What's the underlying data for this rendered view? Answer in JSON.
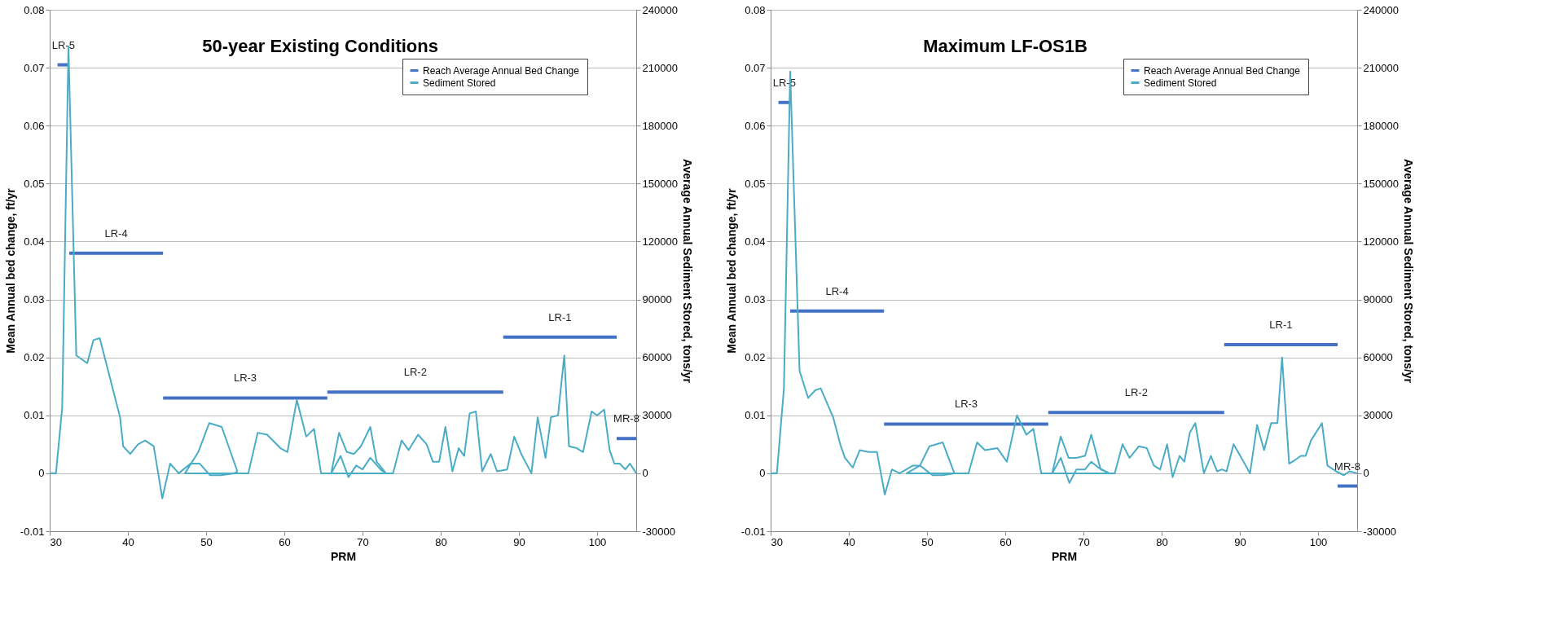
{
  "chart_data": [
    {
      "type": "line",
      "title": "50-year Existing Conditions",
      "xlabel": "PRM",
      "ylabel": "Mean Annual bed change, ft/yr",
      "y2label": "Average Annual Sediment Stored, tons/yr",
      "xlim": [
        30,
        105
      ],
      "xticks": [
        30,
        40,
        50,
        60,
        70,
        80,
        90,
        100
      ],
      "ylim": [
        -0.01,
        0.08
      ],
      "yticks": [
        -0.01,
        0,
        0.01,
        0.02,
        0.03,
        0.04,
        0.05,
        0.06,
        0.07,
        0.08
      ],
      "y2lim": [
        -30000,
        240000
      ],
      "y2ticks": [
        -30000,
        0,
        30000,
        60000,
        90000,
        120000,
        150000,
        180000,
        210000,
        240000
      ],
      "grid": "y",
      "legend": "top right",
      "series": [
        {
          "name": "Reach Average Annual Bed Change",
          "color": "#4472c4",
          "x": [
            31,
            32.5
          ],
          "values": [
            0.0705,
            0.0705
          ]
        },
        {
          "color": "#4472c4",
          "x": [
            32.5,
            44.5
          ],
          "values": [
            0.038,
            0.038
          ]
        },
        {
          "color": "#4472c4",
          "x": [
            44.5,
            65.5
          ],
          "values": [
            0.013,
            0.013
          ]
        },
        {
          "color": "#4472c4",
          "x": [
            65.5,
            88
          ],
          "values": [
            0.014,
            0.014
          ]
        },
        {
          "color": "#4472c4",
          "x": [
            88,
            102.5
          ],
          "values": [
            0.0235,
            0.0235
          ]
        },
        {
          "color": "#4472c4",
          "x": [
            102.5,
            105
          ],
          "values": [
            0.006,
            0.006
          ]
        },
        {
          "name": "Sediment Stored",
          "color": "#4bacc6",
          "axis": "y2",
          "x": [
            30,
            30.8,
            31.6,
            32.4,
            33.4,
            34.8,
            35.6,
            36.4,
            39,
            39.4,
            40.3,
            41.3,
            42.2,
            43.3,
            44.4,
            45.4,
            46.5,
            48,
            49.2,
            50.5,
            51.9,
            53.6,
            54,
            52,
            50.4,
            49,
            47.3,
            55.4,
            56.6,
            57.8,
            59.5,
            60.4,
            61.6,
            62.8,
            63.8,
            64.7,
            66,
            67.2,
            68.2,
            69.2,
            70,
            71,
            72.3,
            73,
            71.8,
            71,
            69.8,
            68.9,
            68,
            67,
            66,
            73.9,
            75,
            75.9,
            77.1,
            78.2,
            79,
            79.8,
            80.6,
            81.5,
            82.3,
            83,
            83.7,
            84.5,
            85.3,
            86.4,
            87.2,
            88.5,
            89.4,
            90.3,
            91.6,
            92.4,
            93.4,
            94.1,
            95,
            95.8,
            96.4,
            97.4,
            98.2,
            99.3,
            100,
            100.9,
            101.6,
            102.2,
            102.9,
            103.6,
            104.2,
            105
          ],
          "values": [
            0,
            0,
            34000,
            221000,
            61000,
            57000,
            69000,
            70000,
            29000,
            14000,
            10000,
            15000,
            17000,
            14000,
            -13000,
            5000,
            0,
            5000,
            5000,
            -1000,
            -1000,
            0,
            1000,
            24000,
            26000,
            11000,
            0,
            0,
            21000,
            20000,
            13000,
            11000,
            38000,
            19000,
            23000,
            0,
            0,
            9000,
            -2000,
            4000,
            2000,
            8000,
            2000,
            0,
            6000,
            24000,
            14000,
            10000,
            11000,
            21000,
            0,
            0,
            17000,
            12000,
            20000,
            15000,
            6000,
            6000,
            24000,
            1000,
            13000,
            9000,
            31000,
            32000,
            1000,
            10000,
            1000,
            2000,
            19000,
            10000,
            0,
            29000,
            8000,
            29000,
            30000,
            61000,
            14000,
            13000,
            11000,
            32000,
            30000,
            33000,
            12000,
            5000,
            5000,
            2000,
            5000,
            0
          ]
        }
      ],
      "annotations": [
        {
          "text": "LR-5",
          "x": 31.75,
          "y": 0.0705
        },
        {
          "text": "LR-4",
          "x": 38.5,
          "y": 0.038
        },
        {
          "text": "LR-3",
          "x": 55,
          "y": 0.013
        },
        {
          "text": "LR-2",
          "x": 76.75,
          "y": 0.014
        },
        {
          "text": "LR-1",
          "x": 95.25,
          "y": 0.0235
        },
        {
          "text": "MR-8",
          "x": 103.75,
          "y": 0.006
        }
      ]
    },
    {
      "type": "line",
      "title": "Maximum LF-OS1B",
      "xlabel": "PRM",
      "ylabel": "Mean Annual bed change, ft/yr",
      "y2label": "Average Annual Sediment Stored, tons/yr",
      "xlim": [
        30,
        105
      ],
      "xticks": [
        30,
        40,
        50,
        60,
        70,
        80,
        90,
        100
      ],
      "ylim": [
        -0.01,
        0.08
      ],
      "yticks": [
        -0.01,
        0,
        0.01,
        0.02,
        0.03,
        0.04,
        0.05,
        0.06,
        0.07,
        0.08
      ],
      "y2lim": [
        -30000,
        240000
      ],
      "y2ticks": [
        -30000,
        0,
        30000,
        60000,
        90000,
        120000,
        150000,
        180000,
        210000,
        240000
      ],
      "grid": "y",
      "legend": "top right",
      "series": [
        {
          "name": "Reach Average Annual Bed Change",
          "color": "#4472c4",
          "x": [
            31,
            32.5
          ],
          "values": [
            0.064,
            0.064
          ]
        },
        {
          "color": "#4472c4",
          "x": [
            32.5,
            44.5
          ],
          "values": [
            0.028,
            0.028
          ]
        },
        {
          "color": "#4472c4",
          "x": [
            44.5,
            65.5
          ],
          "values": [
            0.0085,
            0.0085
          ]
        },
        {
          "color": "#4472c4",
          "x": [
            65.5,
            88
          ],
          "values": [
            0.0105,
            0.0105
          ]
        },
        {
          "color": "#4472c4",
          "x": [
            88,
            102.5
          ],
          "values": [
            0.0222,
            0.0222
          ]
        },
        {
          "color": "#4472c4",
          "x": [
            102.5,
            105
          ],
          "values": [
            -0.0022,
            -0.0022
          ]
        },
        {
          "name": "Sediment Stored",
          "color": "#4bacc6",
          "axis": "y2",
          "x": [
            30,
            30.8,
            31.7,
            32.5,
            33.7,
            34.8,
            35.7,
            36.4,
            38,
            38.9,
            39.5,
            40.5,
            41.4,
            42.5,
            43.6,
            44.6,
            45.5,
            46.5,
            48.2,
            49.1,
            50.7,
            52,
            53.5,
            52,
            50.3,
            49.1,
            47.4,
            55.3,
            56.4,
            57.4,
            59,
            60.2,
            61.5,
            62.7,
            63.6,
            64.6,
            66,
            67.1,
            68.2,
            69.1,
            70.2,
            71,
            71.9,
            73.3,
            72.2,
            71,
            70.2,
            69.1,
            68.1,
            67.1,
            66,
            74,
            75,
            75.9,
            77.1,
            78.1,
            79,
            79.8,
            80.7,
            81.4,
            82.3,
            82.9,
            83.6,
            84.3,
            85.4,
            86.3,
            87.1,
            87.7,
            88.3,
            89.2,
            90.2,
            91.3,
            92.2,
            93.1,
            94,
            94.8,
            95.4,
            96.3,
            97.1,
            97.8,
            98.4,
            99.1,
            100.5,
            101.2,
            102.3,
            103.3,
            104,
            105
          ],
          "values": [
            0,
            0,
            44000,
            208000,
            53000,
            39000,
            43000,
            44000,
            29000,
            15000,
            8000,
            3000,
            12000,
            11000,
            11000,
            -11000,
            2000,
            0,
            4000,
            4000,
            -1000,
            -1000,
            0,
            16000,
            14000,
            4000,
            0,
            0,
            16000,
            12000,
            13000,
            6000,
            30000,
            20000,
            23000,
            0,
            0,
            8000,
            -5000,
            2000,
            2000,
            6000,
            3000,
            0,
            2000,
            20000,
            9000,
            8000,
            8000,
            19000,
            0,
            0,
            15000,
            8000,
            14000,
            13000,
            4000,
            2000,
            15000,
            -2000,
            9000,
            6000,
            21000,
            26000,
            0,
            9000,
            1000,
            2000,
            1000,
            15000,
            8000,
            0,
            25000,
            12000,
            26000,
            26000,
            60000,
            5000,
            7000,
            9000,
            9000,
            17000,
            26000,
            4000,
            1000,
            -1000,
            1000,
            0
          ]
        }
      ],
      "annotations": [
        {
          "text": "LR-5",
          "x": 31.75,
          "y": 0.064
        },
        {
          "text": "LR-4",
          "x": 38.5,
          "y": 0.028
        },
        {
          "text": "LR-3",
          "x": 55,
          "y": 0.0085
        },
        {
          "text": "LR-2",
          "x": 76.75,
          "y": 0.0105
        },
        {
          "text": "LR-1",
          "x": 95.25,
          "y": 0.0222
        },
        {
          "text": "MR-8",
          "x": 103.75,
          "y": -0.0022
        }
      ]
    }
  ]
}
